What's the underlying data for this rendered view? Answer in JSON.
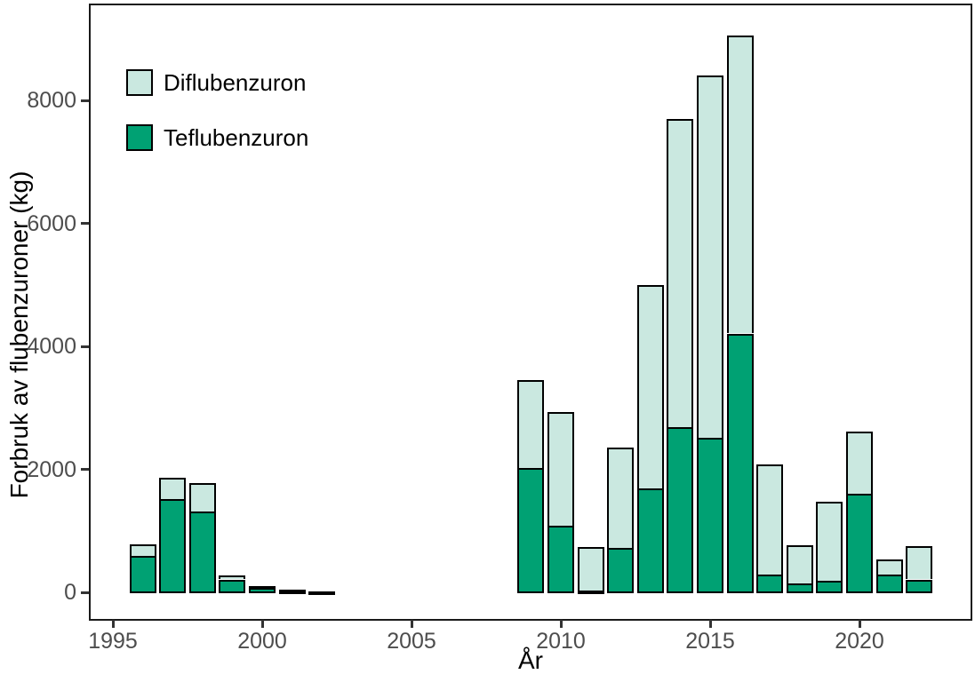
{
  "chart_data": {
    "type": "bar",
    "stacked": true,
    "title": "",
    "xlabel": "År",
    "ylabel": "Forbruk av flubenzuroner (kg)",
    "x": [
      1996,
      1997,
      1998,
      1999,
      2000,
      2001,
      2002,
      2009,
      2010,
      2011,
      2012,
      2013,
      2014,
      2015,
      2016,
      2017,
      2018,
      2019,
      2020,
      2021,
      2022
    ],
    "series": [
      {
        "name": "Diflubenzuron",
        "color": "#cae8e0",
        "values": [
          180,
          360,
          450,
          70,
          20,
          15,
          7,
          1430,
          1850,
          700,
          1640,
          3310,
          5020,
          5900,
          4850,
          1790,
          620,
          1280,
          1010,
          250,
          540
        ]
      },
      {
        "name": "Teflubenzuron",
        "color": "#00a173",
        "values": [
          600,
          1510,
          1320,
          210,
          80,
          35,
          8,
          2020,
          1080,
          30,
          720,
          1690,
          2680,
          2510,
          4210,
          290,
          140,
          190,
          1600,
          290,
          210
        ]
      }
    ],
    "stack_order_bottom_to_top": [
      "Teflubenzuron",
      "Diflubenzuron"
    ],
    "x_ticks": [
      1995,
      2000,
      2005,
      2010,
      2015,
      2020
    ],
    "y_ticks": [
      0,
      2000,
      4000,
      6000,
      8000
    ],
    "xlim": [
      1994.2,
      2023.6
    ],
    "ylim": [
      0,
      9600
    ],
    "grid": false,
    "legend_position": "inside-top-left",
    "bar_outline_color": "#000000",
    "panel_border_color": "#1a1a1a",
    "tick_color": "#333333",
    "tick_label_color": "#4d4d4d",
    "axis_title_color": "#000000"
  }
}
